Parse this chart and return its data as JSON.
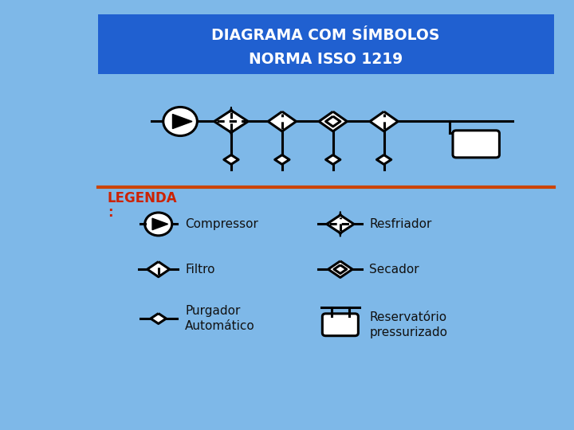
{
  "title_line1": "DIAGRAMA COM SÍMBOLOS",
  "title_line2": "NORMA ISSO 1219",
  "title_bg": "#2060D0",
  "title_color": "#FFFFFF",
  "bg_outer": "#7EB8E8",
  "bg_inner": "#C8DCF0",
  "legend_title": "LEGENDA",
  "legend_title_color": "#CC2200",
  "legend_sep_color": "#CC4400",
  "legend_items_left": [
    "Compressor",
    "Filtro",
    "Purgador\nAutomático"
  ],
  "legend_items_right": [
    "Resfriador",
    "Secador",
    "Reservatório\npressurizado"
  ],
  "line_color": "#000000",
  "symbol_fill": "#FFFFFF",
  "symbol_lw": 2.2,
  "figw": 7.2,
  "figh": 5.4,
  "dpi": 100
}
